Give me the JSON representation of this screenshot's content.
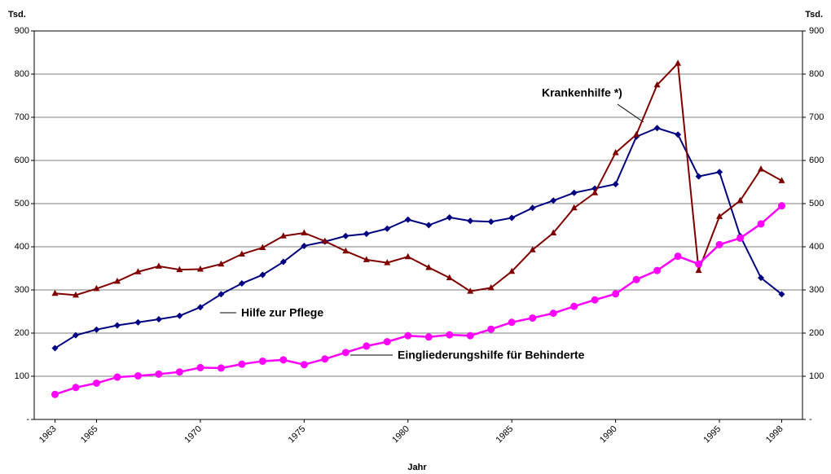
{
  "chart_data": {
    "type": "line",
    "y_unit_label": "Tsd.",
    "y2_unit_label": "Tsd.",
    "xlabel": "Jahr",
    "x": [
      1963,
      1964,
      1965,
      1966,
      1967,
      1968,
      1969,
      1970,
      1971,
      1972,
      1973,
      1974,
      1975,
      1976,
      1977,
      1978,
      1979,
      1980,
      1981,
      1982,
      1983,
      1984,
      1985,
      1986,
      1987,
      1988,
      1989,
      1990,
      1991,
      1992,
      1993,
      1994,
      1995,
      1996,
      1997,
      1998
    ],
    "xlim": [
      1962,
      1999
    ],
    "xticks": [
      1963,
      1965,
      1970,
      1975,
      1980,
      1985,
      1990,
      1995,
      1998
    ],
    "ylim": [
      0,
      900
    ],
    "yticks": [
      {
        "value": 0,
        "label": "-"
      },
      100,
      200,
      300,
      400,
      500,
      600,
      700,
      800,
      900
    ],
    "y2lim": [
      0,
      900
    ],
    "y2ticks": [
      {
        "value": 0,
        "label": "-"
      },
      100,
      200,
      300,
      400,
      500,
      600,
      700,
      800,
      900
    ],
    "grid": true,
    "series": [
      {
        "name": "Hilfe zur Pflege",
        "color": "#000080",
        "marker": "diamond",
        "values": [
          165,
          195,
          208,
          218,
          225,
          232,
          240,
          260,
          290,
          315,
          335,
          365,
          402,
          412,
          425,
          430,
          442,
          463,
          450,
          468,
          460,
          458,
          467,
          490,
          507,
          525,
          535,
          545,
          655,
          675,
          660,
          563,
          573,
          425,
          328,
          290
        ]
      },
      {
        "name": "Krankenhilfe *)",
        "color": "#800000",
        "marker": "triangle",
        "values": [
          292,
          288,
          303,
          320,
          342,
          355,
          347,
          348,
          360,
          383,
          398,
          425,
          432,
          413,
          390,
          370,
          363,
          377,
          352,
          328,
          297,
          305,
          343,
          393,
          432,
          490,
          525,
          618,
          660,
          775,
          825,
          345,
          470,
          507,
          580,
          553
        ]
      },
      {
        "name": "Eingliederungshilfe für Behinderte",
        "color": "#ff00ff",
        "marker": "circle",
        "values": [
          58,
          74,
          84,
          98,
          101,
          105,
          110,
          120,
          119,
          128,
          135,
          138,
          127,
          140,
          155,
          170,
          180,
          194,
          191,
          196,
          194,
          209,
          225,
          235,
          246,
          262,
          277,
          291,
          324,
          345,
          378,
          360,
          405,
          420,
          453,
          495
        ]
      }
    ]
  }
}
